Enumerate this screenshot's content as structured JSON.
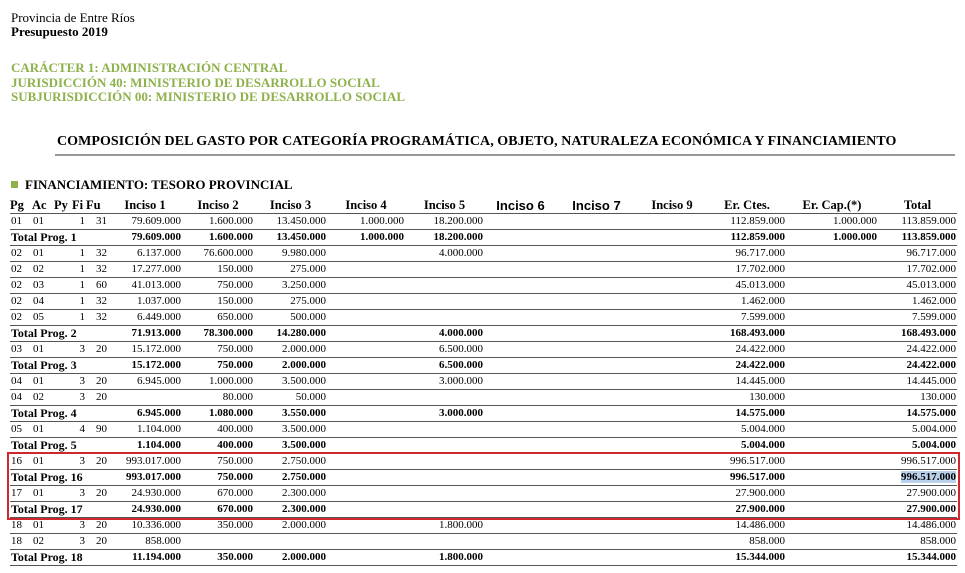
{
  "header": {
    "line1": "Provincia de Entre Ríos",
    "line2": "Presupuesto 2019"
  },
  "subheader": [
    "CARÁCTER 1: ADMINISTRACIÓN CENTRAL",
    "JURISDICCIÓN 40: MINISTERIO DE DESARROLLO SOCIAL",
    "SUBJURISDICCIÓN 00: MINISTERIO DE DESARROLLO SOCIAL"
  ],
  "title": "COMPOSICIÓN DEL GASTO POR CATEGORÍA PROGRAMÁTICA, OBJETO, NATURALEZA ECONÓMICA Y FINANCIAMIENTO",
  "section": "FINANCIAMIENTO: TESORO PROVINCIAL",
  "table": {
    "columns": [
      "Pg",
      "Ac",
      "Py",
      "Fi",
      "Fu",
      "Inciso 1",
      "Inciso 2",
      "Inciso 3",
      "Inciso 4",
      "Inciso 5",
      "Inciso 6",
      "Inciso 7",
      "Inciso 9",
      "Er. Ctes.",
      "Er. Cap.(*)",
      "Total"
    ],
    "rows": [
      {
        "code": [
          "01",
          "01",
          null,
          "1",
          "31"
        ],
        "values": [
          "79.609.000",
          "1.600.000",
          "13.450.000",
          "1.000.000",
          "18.200.000",
          null,
          null,
          null,
          "112.859.000",
          "1.000.000",
          "113.859.000"
        ]
      },
      {
        "label": "Total Prog. 1",
        "values": [
          "79.609.000",
          "1.600.000",
          "13.450.000",
          "1.000.000",
          "18.200.000",
          null,
          null,
          null,
          "112.859.000",
          "1.000.000",
          "113.859.000"
        ]
      },
      {
        "code": [
          "02",
          "01",
          null,
          "1",
          "32"
        ],
        "values": [
          "6.137.000",
          "76.600.000",
          "9.980.000",
          null,
          "4.000.000",
          null,
          null,
          null,
          "96.717.000",
          null,
          "96.717.000"
        ]
      },
      {
        "code": [
          "02",
          "02",
          null,
          "1",
          "32"
        ],
        "values": [
          "17.277.000",
          "150.000",
          "275.000",
          null,
          null,
          null,
          null,
          null,
          "17.702.000",
          null,
          "17.702.000"
        ]
      },
      {
        "code": [
          "02",
          "03",
          null,
          "1",
          "60"
        ],
        "values": [
          "41.013.000",
          "750.000",
          "3.250.000",
          null,
          null,
          null,
          null,
          null,
          "45.013.000",
          null,
          "45.013.000"
        ]
      },
      {
        "code": [
          "02",
          "04",
          null,
          "1",
          "32"
        ],
        "values": [
          "1.037.000",
          "150.000",
          "275.000",
          null,
          null,
          null,
          null,
          null,
          "1.462.000",
          null,
          "1.462.000"
        ]
      },
      {
        "code": [
          "02",
          "05",
          null,
          "1",
          "32"
        ],
        "values": [
          "6.449.000",
          "650.000",
          "500.000",
          null,
          null,
          null,
          null,
          null,
          "7.599.000",
          null,
          "7.599.000"
        ]
      },
      {
        "label": "Total Prog. 2",
        "values": [
          "71.913.000",
          "78.300.000",
          "14.280.000",
          null,
          "4.000.000",
          null,
          null,
          null,
          "168.493.000",
          null,
          "168.493.000"
        ]
      },
      {
        "code": [
          "03",
          "01",
          null,
          "3",
          "20"
        ],
        "values": [
          "15.172.000",
          "750.000",
          "2.000.000",
          null,
          "6.500.000",
          null,
          null,
          null,
          "24.422.000",
          null,
          "24.422.000"
        ]
      },
      {
        "label": "Total Prog. 3",
        "values": [
          "15.172.000",
          "750.000",
          "2.000.000",
          null,
          "6.500.000",
          null,
          null,
          null,
          "24.422.000",
          null,
          "24.422.000"
        ]
      },
      {
        "code": [
          "04",
          "01",
          null,
          "3",
          "20"
        ],
        "values": [
          "6.945.000",
          "1.000.000",
          "3.500.000",
          null,
          "3.000.000",
          null,
          null,
          null,
          "14.445.000",
          null,
          "14.445.000"
        ]
      },
      {
        "code": [
          "04",
          "02",
          null,
          "3",
          "20"
        ],
        "values": [
          null,
          "80.000",
          "50.000",
          null,
          null,
          null,
          null,
          null,
          "130.000",
          null,
          "130.000"
        ]
      },
      {
        "label": "Total Prog. 4",
        "values": [
          "6.945.000",
          "1.080.000",
          "3.550.000",
          null,
          "3.000.000",
          null,
          null,
          null,
          "14.575.000",
          null,
          "14.575.000"
        ]
      },
      {
        "code": [
          "05",
          "01",
          null,
          "4",
          "90"
        ],
        "values": [
          "1.104.000",
          "400.000",
          "3.500.000",
          null,
          null,
          null,
          null,
          null,
          "5.004.000",
          null,
          "5.004.000"
        ]
      },
      {
        "label": "Total Prog. 5",
        "values": [
          "1.104.000",
          "400.000",
          "3.500.000",
          null,
          null,
          null,
          null,
          null,
          "5.004.000",
          null,
          "5.004.000"
        ]
      },
      {
        "code": [
          "16",
          "01",
          null,
          "3",
          "20"
        ],
        "values": [
          "993.017.000",
          "750.000",
          "2.750.000",
          null,
          null,
          null,
          null,
          null,
          "996.517.000",
          null,
          "996.517.000"
        ]
      },
      {
        "label": "Total Prog. 16",
        "values": [
          "993.017.000",
          "750.000",
          "2.750.000",
          null,
          null,
          null,
          null,
          null,
          "996.517.000",
          null,
          "996.517.000"
        ]
      },
      {
        "code": [
          "17",
          "01",
          null,
          "3",
          "20"
        ],
        "values": [
          "24.930.000",
          "670.000",
          "2.300.000",
          null,
          null,
          null,
          null,
          null,
          "27.900.000",
          null,
          "27.900.000"
        ]
      },
      {
        "label": "Total Prog. 17",
        "values": [
          "24.930.000",
          "670.000",
          "2.300.000",
          null,
          null,
          null,
          null,
          null,
          "27.900.000",
          null,
          "27.900.000"
        ]
      },
      {
        "code": [
          "18",
          "01",
          null,
          "3",
          "20"
        ],
        "values": [
          "10.336.000",
          "350.000",
          "2.000.000",
          null,
          "1.800.000",
          null,
          null,
          null,
          "14.486.000",
          null,
          "14.486.000"
        ]
      },
      {
        "code": [
          "18",
          "02",
          null,
          "3",
          "20"
        ],
        "values": [
          "858.000",
          null,
          null,
          null,
          null,
          null,
          null,
          null,
          "858.000",
          null,
          "858.000"
        ]
      },
      {
        "label": "Total Prog. 18",
        "values": [
          "11.194.000",
          "350.000",
          "2.000.000",
          null,
          "1.800.000",
          null,
          null,
          null,
          "15.344.000",
          null,
          "15.344.000"
        ]
      }
    ]
  }
}
